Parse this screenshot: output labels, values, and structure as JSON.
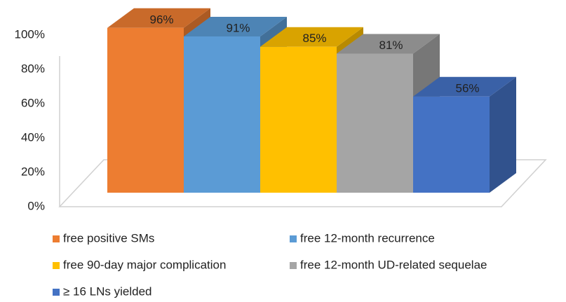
{
  "chart_data": {
    "type": "bar3d",
    "categories": [
      null
    ],
    "series": [
      {
        "name": "free positive SMs",
        "color": "#ed7d31",
        "values": [
          96
        ],
        "value_labels": [
          "96%"
        ]
      },
      {
        "name": "free 12-month recurrence",
        "color": "#5b9bd5",
        "values": [
          91
        ],
        "value_labels": [
          "91%"
        ]
      },
      {
        "name": "free 90-day major complication",
        "color": "#ffc000",
        "values": [
          85
        ],
        "value_labels": [
          "85%"
        ]
      },
      {
        "name": "free 12-month UD-related sequelae",
        "color": "#a5a5a5",
        "values": [
          81
        ],
        "value_labels": [
          "81%"
        ]
      },
      {
        "name": "≥ 16 LNs yielded",
        "color": "#4472c4",
        "values": [
          56
        ],
        "value_labels": [
          "56%"
        ]
      }
    ],
    "ylim": [
      0,
      100
    ],
    "yticks": [
      {
        "value": 0,
        "label": "0%"
      },
      {
        "value": 20,
        "label": "20%"
      },
      {
        "value": 40,
        "label": "40%"
      },
      {
        "value": 60,
        "label": "60%"
      },
      {
        "value": 80,
        "label": "80%"
      },
      {
        "value": 100,
        "label": "100%"
      }
    ],
    "legend": "bottom"
  }
}
